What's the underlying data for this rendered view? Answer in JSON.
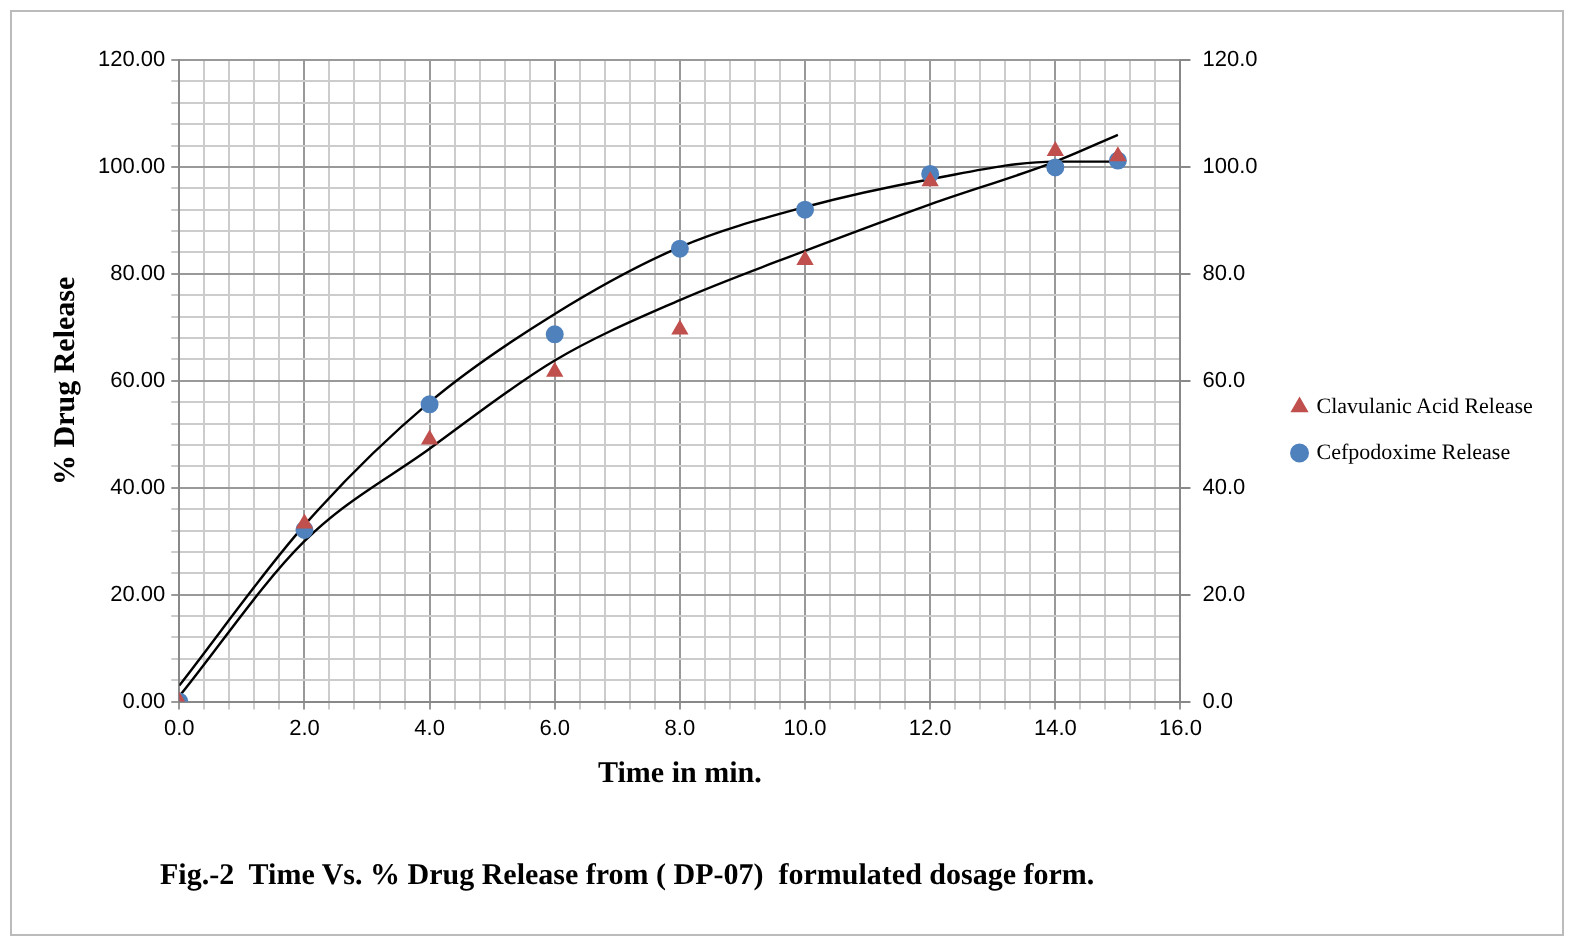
{
  "chart_data": {
    "type": "scatter",
    "xlabel": "Time in min.",
    "ylabel": "% Drug Release",
    "annotations": [
      "Fig.-2  Time Vs. % Drug Release from ( DP-07)  formulated dosage form."
    ],
    "x": [
      0,
      2,
      4,
      6,
      8,
      10,
      12,
      14,
      15
    ],
    "series": [
      {
        "name": "Clavulanic Acid Release",
        "color": "#c0504d",
        "marker": "triangle",
        "values": [
          0,
          33.3,
          49,
          61.7,
          69.6,
          82.6,
          97.3,
          103,
          102
        ]
      },
      {
        "name": "Cefpodoxime Release",
        "color": "#4f81bd",
        "marker": "circle",
        "values": [
          0,
          32.1,
          55.6,
          68.7,
          84.7,
          92,
          98.7,
          99.9,
          101.2
        ]
      },
      {
        "type": "line",
        "color": "#000000",
        "marker": "none",
        "x": [
          0,
          2,
          4,
          6,
          8,
          10,
          12,
          14,
          15
        ],
        "values": [
          1,
          30,
          47.3,
          63.8,
          75.1,
          84.3,
          93,
          101,
          106
        ]
      },
      {
        "type": "line",
        "color": "#000000",
        "marker": "none",
        "x": [
          0,
          2,
          4,
          6,
          8,
          10,
          12,
          14,
          15
        ],
        "values": [
          3,
          33,
          56,
          72.5,
          85,
          92.5,
          97.7,
          101,
          101
        ]
      }
    ],
    "xlim": [
      0,
      16
    ],
    "xticks": [
      {
        "value": 0,
        "label": "0.0"
      },
      {
        "value": 0.4,
        "label": null
      },
      {
        "value": 0.8,
        "label": null
      },
      {
        "value": 1.2,
        "label": null
      },
      {
        "value": 1.6,
        "label": null
      },
      {
        "value": 2,
        "label": "2.0"
      },
      {
        "value": 2.4,
        "label": null
      },
      {
        "value": 2.8,
        "label": null
      },
      {
        "value": 3.2,
        "label": null
      },
      {
        "value": 3.6,
        "label": null
      },
      {
        "value": 4,
        "label": "4.0"
      },
      {
        "value": 4.4,
        "label": null
      },
      {
        "value": 4.8,
        "label": null
      },
      {
        "value": 5.2,
        "label": null
      },
      {
        "value": 5.6,
        "label": null
      },
      {
        "value": 6,
        "label": "6.0"
      },
      {
        "value": 6.4,
        "label": null
      },
      {
        "value": 6.8,
        "label": null
      },
      {
        "value": 7.2,
        "label": null
      },
      {
        "value": 7.6,
        "label": null
      },
      {
        "value": 8,
        "label": "8.0"
      },
      {
        "value": 8.4,
        "label": null
      },
      {
        "value": 8.8,
        "label": null
      },
      {
        "value": 9.2,
        "label": null
      },
      {
        "value": 9.6,
        "label": null
      },
      {
        "value": 10,
        "label": "10.0"
      },
      {
        "value": 10.4,
        "label": null
      },
      {
        "value": 10.8,
        "label": null
      },
      {
        "value": 11.2,
        "label": null
      },
      {
        "value": 11.6,
        "label": null
      },
      {
        "value": 12,
        "label": "12.0"
      },
      {
        "value": 12.4,
        "label": null
      },
      {
        "value": 12.8,
        "label": null
      },
      {
        "value": 13.2,
        "label": null
      },
      {
        "value": 13.6,
        "label": null
      },
      {
        "value": 14,
        "label": "14.0"
      },
      {
        "value": 14.4,
        "label": null
      },
      {
        "value": 14.8,
        "label": null
      },
      {
        "value": 15.2,
        "label": null
      },
      {
        "value": 15.6,
        "label": null
      },
      {
        "value": 16,
        "label": "16.0"
      }
    ],
    "ylim": [
      0,
      120
    ],
    "yticks": [
      {
        "value": 0,
        "label": "0.00"
      },
      {
        "value": 4,
        "label": null
      },
      {
        "value": 8,
        "label": null
      },
      {
        "value": 12,
        "label": null
      },
      {
        "value": 16,
        "label": null
      },
      {
        "value": 20,
        "label": "20.00"
      },
      {
        "value": 24,
        "label": null
      },
      {
        "value": 28,
        "label": null
      },
      {
        "value": 32,
        "label": null
      },
      {
        "value": 36,
        "label": null
      },
      {
        "value": 40,
        "label": "40.00"
      },
      {
        "value": 44,
        "label": null
      },
      {
        "value": 48,
        "label": null
      },
      {
        "value": 52,
        "label": null
      },
      {
        "value": 56,
        "label": null
      },
      {
        "value": 60,
        "label": "60.00"
      },
      {
        "value": 64,
        "label": null
      },
      {
        "value": 68,
        "label": null
      },
      {
        "value": 72,
        "label": null
      },
      {
        "value": 76,
        "label": null
      },
      {
        "value": 80,
        "label": "80.00"
      },
      {
        "value": 84,
        "label": null
      },
      {
        "value": 88,
        "label": null
      },
      {
        "value": 92,
        "label": null
      },
      {
        "value": 96,
        "label": null
      },
      {
        "value": 100,
        "label": "100.00"
      },
      {
        "value": 104,
        "label": null
      },
      {
        "value": 108,
        "label": null
      },
      {
        "value": 112,
        "label": null
      },
      {
        "value": 116,
        "label": null
      },
      {
        "value": 120,
        "label": "120.00"
      }
    ],
    "y2lim": [
      0,
      120
    ],
    "y2ticks": [
      {
        "value": 0,
        "label": "0.0"
      },
      {
        "value": 20,
        "label": "20.0"
      },
      {
        "value": 40,
        "label": "40.0"
      },
      {
        "value": 60,
        "label": "60.0"
      },
      {
        "value": 80,
        "label": "80.0"
      },
      {
        "value": 100,
        "label": "100.0"
      },
      {
        "value": 120,
        "label": "120.0"
      }
    ],
    "grid": true,
    "legend": "right"
  }
}
